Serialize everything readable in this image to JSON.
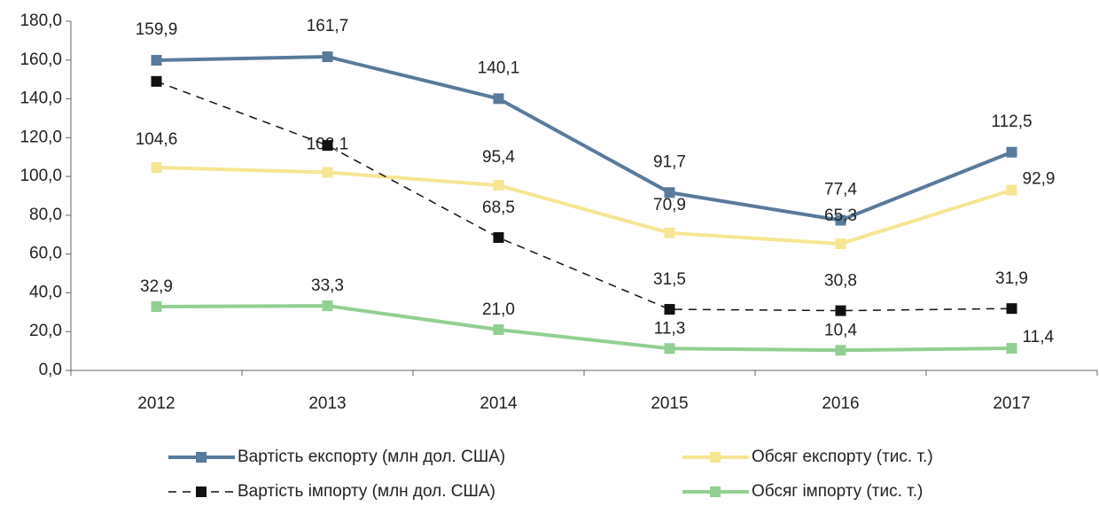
{
  "chart_data": {
    "type": "line",
    "categories": [
      "2012",
      "2013",
      "2014",
      "2015",
      "2016",
      "2017"
    ],
    "ylim": [
      0,
      180
    ],
    "yticks": [
      {
        "value": 0,
        "label": "0,0"
      },
      {
        "value": 20,
        "label": "20,0"
      },
      {
        "value": 40,
        "label": "40,0"
      },
      {
        "value": 60,
        "label": "60,0"
      },
      {
        "value": 80,
        "label": "80,0"
      },
      {
        "value": 100,
        "label": "100,0"
      },
      {
        "value": 120,
        "label": "120,0"
      },
      {
        "value": 140,
        "label": "140,0"
      },
      {
        "value": 160,
        "label": "160,0"
      },
      {
        "value": 180,
        "label": "180,0"
      }
    ],
    "legend": "bottom",
    "series": [
      {
        "name": "Вартість експорту (млн дол. США)",
        "color": "#587a9b",
        "dash": false,
        "values": [
          159.9,
          161.7,
          140.1,
          91.7,
          77.4,
          112.5
        ],
        "value_labels": [
          "159,9",
          "161,7",
          "140,1",
          "91,7",
          "77,4",
          "112,5"
        ]
      },
      {
        "name": "Обсяг експорту (тис. т.)",
        "color": "#f6e593",
        "dash": false,
        "values": [
          104.6,
          102.1,
          95.4,
          70.9,
          65.3,
          92.9
        ],
        "value_labels": [
          "104,6",
          "102,1",
          "95,4",
          "70,9",
          "65,3",
          "92,9"
        ]
      },
      {
        "name": "Вартість імпорту (млн дол. США)",
        "color": "#111111",
        "dash": true,
        "values": [
          149,
          116,
          68.5,
          31.5,
          30.8,
          31.9
        ],
        "value_labels": [
          null,
          null,
          "68,5",
          "31,5",
          "30,8",
          "31,9"
        ]
      },
      {
        "name": "Обсяг імпорту (тис. т.)",
        "color": "#92cf92",
        "dash": false,
        "values": [
          32.9,
          33.3,
          21.0,
          11.3,
          10.4,
          11.4
        ],
        "value_labels": [
          "32,9",
          "33,3",
          "21,0",
          "11,3",
          "10,4",
          "11,4"
        ]
      }
    ]
  }
}
